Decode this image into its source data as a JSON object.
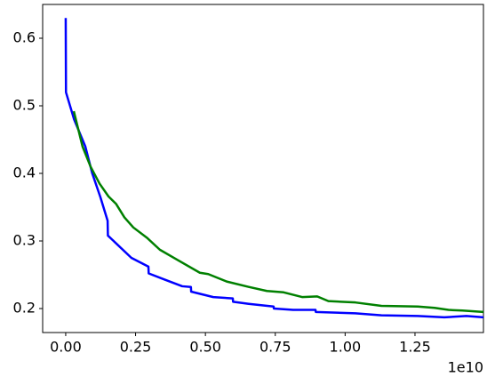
{
  "chart_data": {
    "type": "line",
    "x_offset_label": "1e10",
    "xlim": [
      -0.0825,
      1.495
    ],
    "ylim": [
      0.1645,
      0.65
    ],
    "xticks": [
      {
        "value": 0,
        "label": "0.00"
      },
      {
        "value": 0.25,
        "label": "0.25"
      },
      {
        "value": 0.5,
        "label": "0.50"
      },
      {
        "value": 0.75,
        "label": "0.75"
      },
      {
        "value": 1,
        "label": "1.00"
      },
      {
        "value": 1.25,
        "label": "1.25"
      }
    ],
    "yticks": [
      0.2,
      0.3,
      0.4,
      0.5,
      0.6
    ],
    "series": [
      {
        "color": "#0000ff",
        "x": [
          0,
          0.001,
          0.03,
          0.07,
          0.095,
          0.124,
          0.15,
          0.151,
          0.235,
          0.296,
          0.297,
          0.353,
          0.417,
          0.448,
          0.449,
          0.528,
          0.598,
          0.599,
          0.655,
          0.744,
          0.745,
          0.814,
          0.894,
          0.895,
          1.037,
          1.13,
          1.26,
          1.355,
          1.434,
          1.495
        ],
        "values": [
          0.63,
          0.52,
          0.48,
          0.44,
          0.4,
          0.365,
          0.33,
          0.308,
          0.275,
          0.262,
          0.252,
          0.243,
          0.233,
          0.232,
          0.225,
          0.217,
          0.215,
          0.21,
          0.207,
          0.203,
          0.2,
          0.198,
          0.198,
          0.195,
          0.193,
          0.19,
          0.189,
          0.187,
          0.189,
          0.187
        ]
      },
      {
        "color": "#008000",
        "x": [
          0.029,
          0.06,
          0.089,
          0.121,
          0.153,
          0.18,
          0.21,
          0.242,
          0.29,
          0.337,
          0.4,
          0.48,
          0.51,
          0.576,
          0.655,
          0.72,
          0.78,
          0.846,
          0.9,
          0.94,
          1.037,
          1.13,
          1.26,
          1.32,
          1.37,
          1.42,
          1.495
        ],
        "values": [
          0.492,
          0.44,
          0.41,
          0.385,
          0.366,
          0.355,
          0.335,
          0.32,
          0.305,
          0.287,
          0.272,
          0.253,
          0.251,
          0.24,
          0.232,
          0.226,
          0.224,
          0.217,
          0.218,
          0.211,
          0.209,
          0.204,
          0.203,
          0.201,
          0.198,
          0.197,
          0.195
        ]
      }
    ]
  }
}
